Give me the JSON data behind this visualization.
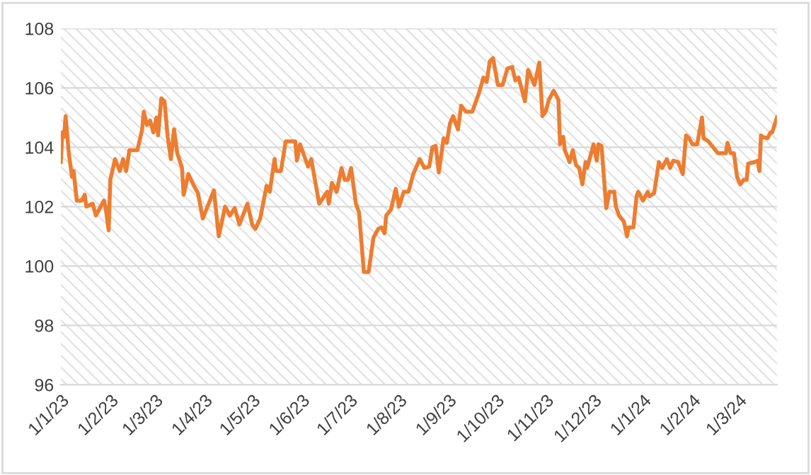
{
  "chart_data": {
    "type": "line",
    "x": [
      "2023-01-01",
      "2023-01-02",
      "2023-01-03",
      "2023-01-04",
      "2023-01-06",
      "2023-01-08",
      "2023-01-09",
      "2023-01-11",
      "2023-01-14",
      "2023-01-16",
      "2023-01-17",
      "2023-01-21",
      "2023-01-23",
      "2023-01-28",
      "2023-01-29",
      "2023-01-31",
      "2023-02-01",
      "2023-02-04",
      "2023-02-07",
      "2023-02-09",
      "2023-02-11",
      "2023-02-13",
      "2023-02-18",
      "2023-02-21",
      "2023-02-22",
      "2023-02-24",
      "2023-02-26",
      "2023-02-28",
      "2023-03-02",
      "2023-03-03",
      "2023-03-05",
      "2023-03-07",
      "2023-03-09",
      "2023-03-11",
      "2023-03-13",
      "2023-03-15",
      "2023-03-18",
      "2023-03-19",
      "2023-03-22",
      "2023-03-25",
      "2023-03-28",
      "2023-03-31",
      "2023-04-03",
      "2023-04-07",
      "2023-04-10",
      "2023-04-14",
      "2023-04-17",
      "2023-04-20",
      "2023-04-23",
      "2023-04-28",
      "2023-05-01",
      "2023-05-03",
      "2023-05-06",
      "2023-05-10",
      "2023-05-12",
      "2023-05-15",
      "2023-05-16",
      "2023-05-19",
      "2023-05-22",
      "2023-05-28",
      "2023-05-29",
      "2023-05-31",
      "2023-06-05",
      "2023-06-07",
      "2023-06-12",
      "2023-06-17",
      "2023-06-18",
      "2023-06-20",
      "2023-06-23",
      "2023-06-26",
      "2023-06-28",
      "2023-06-30",
      "2023-07-02",
      "2023-07-05",
      "2023-07-07",
      "2023-07-10",
      "2023-07-13",
      "2023-07-16",
      "2023-07-19",
      "2023-07-21",
      "2023-07-23",
      "2023-07-24",
      "2023-07-27",
      "2023-07-30",
      "2023-08-01",
      "2023-08-04",
      "2023-08-07",
      "2023-08-10",
      "2023-08-14",
      "2023-08-17",
      "2023-08-20",
      "2023-08-22",
      "2023-08-24",
      "2023-08-26",
      "2023-08-29",
      "2023-08-31",
      "2023-09-02",
      "2023-09-04",
      "2023-09-07",
      "2023-09-09",
      "2023-09-12",
      "2023-09-16",
      "2023-09-20",
      "2023-09-23",
      "2023-09-25",
      "2023-09-27",
      "2023-09-29",
      "2023-10-02",
      "2023-10-05",
      "2023-10-08",
      "2023-10-11",
      "2023-10-13",
      "2023-10-15",
      "2023-10-19",
      "2023-10-21",
      "2023-10-25",
      "2023-10-28",
      "2023-10-30",
      "2023-11-01",
      "2023-11-03",
      "2023-11-06",
      "2023-11-09",
      "2023-11-10",
      "2023-11-12",
      "2023-11-13",
      "2023-11-16",
      "2023-11-18",
      "2023-11-20",
      "2023-11-22",
      "2023-11-24",
      "2023-11-26",
      "2023-11-27",
      "2023-11-29",
      "2023-12-01",
      "2023-12-03",
      "2023-12-04",
      "2023-12-06",
      "2023-12-09",
      "2023-12-11",
      "2023-12-14",
      "2023-12-15",
      "2023-12-17",
      "2023-12-20",
      "2023-12-22",
      "2023-12-23",
      "2023-12-26",
      "2023-12-28",
      "2023-12-29",
      "2024-01-01",
      "2024-01-04",
      "2024-01-05",
      "2024-01-08",
      "2024-01-11",
      "2024-01-13",
      "2024-01-16",
      "2024-01-18",
      "2024-01-20",
      "2024-01-23",
      "2024-01-26",
      "2024-01-28",
      "2024-01-30",
      "2024-02-01",
      "2024-02-04",
      "2024-02-07",
      "2024-02-08",
      "2024-02-11",
      "2024-02-17",
      "2024-02-22",
      "2024-02-23",
      "2024-02-25",
      "2024-02-27",
      "2024-02-29",
      "2024-03-02",
      "2024-03-04",
      "2024-03-06",
      "2024-03-07",
      "2024-03-11",
      "2024-03-13",
      "2024-03-14",
      "2024-03-15",
      "2024-03-16",
      "2024-03-19",
      "2024-03-21",
      "2024-03-22",
      "2024-03-25"
    ],
    "series": [
      {
        "color": "#ed7d31",
        "values": [
          103.5,
          104.5,
          104.35,
          105.05,
          103.8,
          103.0,
          103.2,
          102.2,
          102.2,
          102.4,
          102.0,
          102.1,
          101.7,
          102.2,
          102.0,
          101.2,
          102.9,
          103.6,
          103.2,
          103.6,
          103.2,
          103.9,
          103.9,
          104.6,
          105.2,
          104.75,
          104.9,
          104.5,
          105.0,
          104.4,
          105.65,
          105.55,
          104.35,
          103.6,
          104.6,
          103.8,
          103.3,
          102.4,
          103.1,
          102.75,
          102.45,
          101.6,
          102.0,
          102.55,
          101.0,
          102.0,
          101.7,
          101.95,
          101.4,
          102.1,
          101.4,
          101.25,
          101.6,
          102.7,
          102.5,
          103.6,
          103.2,
          103.2,
          104.2,
          104.2,
          103.55,
          104.1,
          103.35,
          103.6,
          102.1,
          102.5,
          102.1,
          102.8,
          102.5,
          103.3,
          102.9,
          102.9,
          103.3,
          102.1,
          101.8,
          99.8,
          99.8,
          100.95,
          101.25,
          101.3,
          101.1,
          101.7,
          101.9,
          102.6,
          102.0,
          102.5,
          102.5,
          103.1,
          103.6,
          103.3,
          103.35,
          104.0,
          104.05,
          103.15,
          104.3,
          104.15,
          104.8,
          105.05,
          104.6,
          105.4,
          105.2,
          105.2,
          105.8,
          106.35,
          106.2,
          106.9,
          107.0,
          106.1,
          106.1,
          106.65,
          106.7,
          106.25,
          106.35,
          105.55,
          106.6,
          106.1,
          106.85,
          105.05,
          105.2,
          105.6,
          105.9,
          105.6,
          104.1,
          104.35,
          103.9,
          103.5,
          103.9,
          103.4,
          103.3,
          102.75,
          103.5,
          103.3,
          103.7,
          104.1,
          103.55,
          104.1,
          104.05,
          101.95,
          102.5,
          102.5,
          102.0,
          101.7,
          101.5,
          101.0,
          101.3,
          101.3,
          102.35,
          102.5,
          102.2,
          102.5,
          102.35,
          102.45,
          103.5,
          103.3,
          103.6,
          103.3,
          103.55,
          103.5,
          103.1,
          104.4,
          104.3,
          104.1,
          104.1,
          105.0,
          104.3,
          104.2,
          103.8,
          103.8,
          104.15,
          103.8,
          103.8,
          103.0,
          102.75,
          102.9,
          102.9,
          103.45,
          103.5,
          103.55,
          103.2,
          104.4,
          104.35,
          104.3,
          104.5,
          104.5,
          105.0
        ]
      }
    ],
    "xlim": [
      "2023-01-01",
      "2024-03-25"
    ],
    "xticks": [
      {
        "value": "2023-01-01",
        "label": "1/1/23"
      },
      {
        "value": "2023-02-01",
        "label": "1/2/23"
      },
      {
        "value": "2023-03-01",
        "label": "1/3/23"
      },
      {
        "value": "2023-04-01",
        "label": "1/4/23"
      },
      {
        "value": "2023-05-01",
        "label": "1/5/23"
      },
      {
        "value": "2023-06-01",
        "label": "1/6/23"
      },
      {
        "value": "2023-07-01",
        "label": "1/7/23"
      },
      {
        "value": "2023-08-01",
        "label": "1/8/23"
      },
      {
        "value": "2023-09-01",
        "label": "1/9/23"
      },
      {
        "value": "2023-10-01",
        "label": "1/10/23"
      },
      {
        "value": "2023-11-01",
        "label": "1/11/23"
      },
      {
        "value": "2023-12-01",
        "label": "1/12/23"
      },
      {
        "value": "2024-01-01",
        "label": "1/1/24"
      },
      {
        "value": "2024-02-01",
        "label": "1/2/24"
      },
      {
        "value": "2024-03-01",
        "label": "1/3/24"
      }
    ],
    "ylim": [
      96,
      108
    ],
    "yticks": [
      96,
      98,
      100,
      102,
      104,
      106,
      108
    ],
    "grid": "y",
    "marker": "none",
    "line_style": "solid"
  }
}
